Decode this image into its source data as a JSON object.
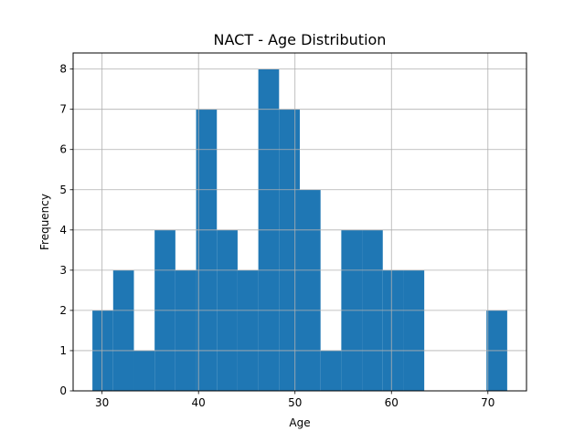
{
  "chart_data": {
    "type": "bar",
    "subtype": "histogram",
    "title": "NACT - Age Distribution",
    "xlabel": "Age",
    "ylabel": "Frequency",
    "xlim": [
      27,
      74
    ],
    "ylim": [
      0,
      8.4
    ],
    "xticks": [
      30,
      40,
      50,
      60,
      70
    ],
    "yticks": [
      0,
      1,
      2,
      3,
      4,
      5,
      6,
      7,
      8
    ],
    "grid": true,
    "bar_color": "#1f77b4",
    "grid_color": "#b0b0b0",
    "bins": [
      {
        "x0": 29.0,
        "x1": 31.15,
        "count": 2
      },
      {
        "x0": 31.15,
        "x1": 33.3,
        "count": 3
      },
      {
        "x0": 33.3,
        "x1": 35.45,
        "count": 1
      },
      {
        "x0": 35.45,
        "x1": 37.6,
        "count": 4
      },
      {
        "x0": 37.6,
        "x1": 39.75,
        "count": 3
      },
      {
        "x0": 39.75,
        "x1": 41.9,
        "count": 7
      },
      {
        "x0": 41.9,
        "x1": 44.05,
        "count": 4
      },
      {
        "x0": 44.05,
        "x1": 46.2,
        "count": 3
      },
      {
        "x0": 46.2,
        "x1": 48.35,
        "count": 8
      },
      {
        "x0": 48.35,
        "x1": 50.5,
        "count": 7
      },
      {
        "x0": 50.5,
        "x1": 52.65,
        "count": 5
      },
      {
        "x0": 52.65,
        "x1": 54.8,
        "count": 1
      },
      {
        "x0": 54.8,
        "x1": 56.95,
        "count": 4
      },
      {
        "x0": 56.95,
        "x1": 59.1,
        "count": 4
      },
      {
        "x0": 59.1,
        "x1": 61.25,
        "count": 3
      },
      {
        "x0": 61.25,
        "x1": 63.4,
        "count": 3
      },
      {
        "x0": 63.4,
        "x1": 65.55,
        "count": 0
      },
      {
        "x0": 65.55,
        "x1": 67.7,
        "count": 0
      },
      {
        "x0": 67.7,
        "x1": 69.85,
        "count": 0
      },
      {
        "x0": 69.85,
        "x1": 72.0,
        "count": 2
      }
    ]
  }
}
